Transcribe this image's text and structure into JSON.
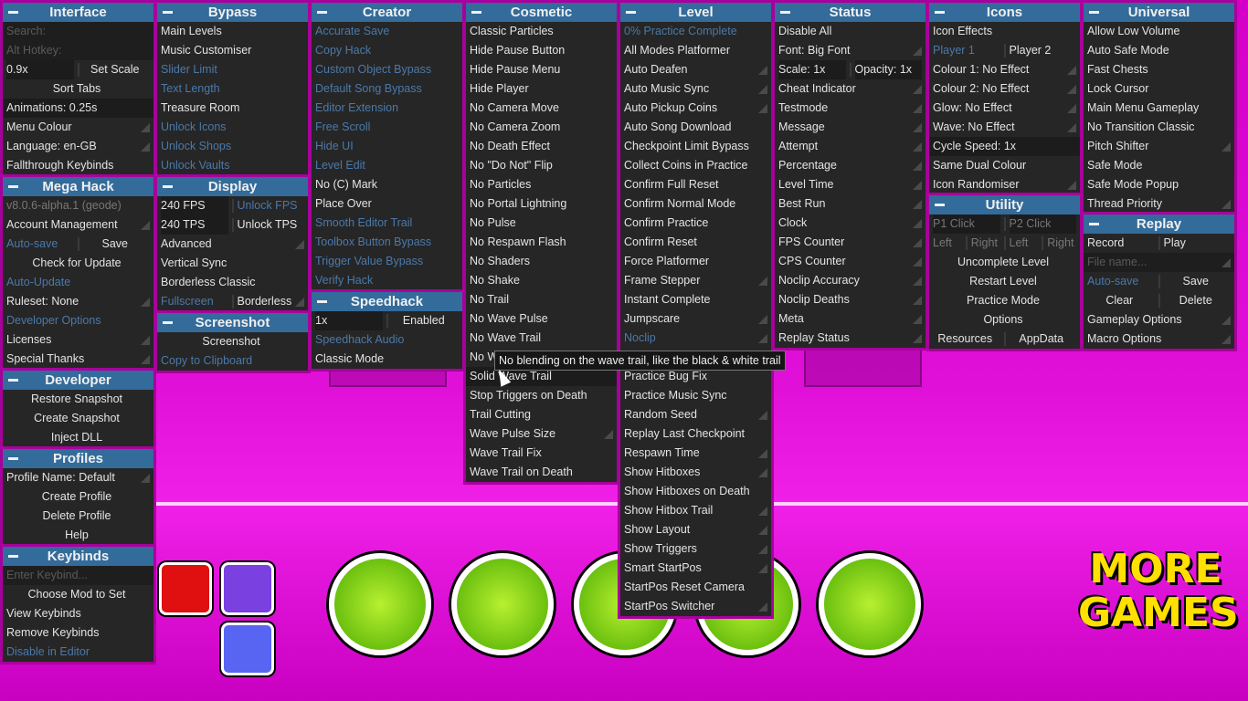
{
  "colors": {
    "header": "#336b9b",
    "panel": "#262626",
    "border": "#a8009c",
    "disabled_text": "#4a79aa",
    "background": "#e010d8"
  },
  "tooltip": "No blending on the wave trail, like the black & white trail",
  "background_art": {
    "more_games": "MORE GAMES",
    "icons": [
      "trophy-icon",
      "gear-icon",
      "stats-icon",
      "music-icon",
      "pentagon-icon",
      "youtube-icon",
      "twitch-icon",
      "discord-icon"
    ]
  },
  "panels": [
    {
      "id": "interface",
      "title": "Interface",
      "items": [
        {
          "in": "Search:"
        },
        {
          "in": "Alt Hotkey:"
        },
        {
          "pair": [
            {
              "t": "0.9x",
              "sel": true
            },
            {
              "t": "Set Scale",
              "c": true
            }
          ]
        },
        {
          "t": "Sort Tabs",
          "c": true
        },
        {
          "t": "Animations: 0.25s",
          "sel": true
        },
        {
          "t": "Menu Colour",
          "a": true
        },
        {
          "t": "Language: en-GB",
          "a": true
        },
        {
          "t": "Fallthrough Keybinds"
        }
      ]
    },
    {
      "id": "mega-hack",
      "title": "Mega Hack",
      "items": [
        {
          "t": "v8.0.6-alpha.1 (geode)",
          "g": true
        },
        {
          "t": "Account Management",
          "a": true
        },
        {
          "pair": [
            {
              "t": "Auto-save",
              "d": true
            },
            {
              "t": "Save",
              "c": true
            }
          ]
        },
        {
          "t": "Check for Update",
          "c": true
        },
        {
          "t": "Auto-Update",
          "d": true
        },
        {
          "t": "Ruleset: None",
          "a": true
        },
        {
          "t": "Developer Options",
          "d": true
        },
        {
          "t": "Licenses",
          "a": true
        },
        {
          "t": "Special Thanks",
          "a": true
        }
      ]
    },
    {
      "id": "developer",
      "title": "Developer",
      "items": [
        {
          "t": "Restore Snapshot",
          "c": true
        },
        {
          "t": "Create Snapshot",
          "c": true
        },
        {
          "t": "Inject DLL",
          "c": true
        }
      ]
    },
    {
      "id": "profiles",
      "title": "Profiles",
      "items": [
        {
          "t": "Profile Name: Default",
          "a": true
        },
        {
          "t": "Create Profile",
          "c": true
        },
        {
          "t": "Delete Profile",
          "c": true
        },
        {
          "t": "Help",
          "c": true
        }
      ]
    },
    {
      "id": "keybinds",
      "title": "Keybinds",
      "items": [
        {
          "in": "Enter Keybind..."
        },
        {
          "t": "Choose Mod to Set",
          "c": true
        },
        {
          "t": "View Keybinds"
        },
        {
          "t": "Remove Keybinds"
        },
        {
          "t": "Disable in Editor",
          "d": true
        }
      ]
    },
    {
      "id": "bypass",
      "title": "Bypass",
      "items": [
        {
          "t": "Main Levels"
        },
        {
          "t": "Music Customiser"
        },
        {
          "t": "Slider Limit",
          "d": true
        },
        {
          "t": "Text Length",
          "d": true
        },
        {
          "t": "Treasure Room"
        },
        {
          "t": "Unlock Icons",
          "d": true
        },
        {
          "t": "Unlock Shops",
          "d": true
        },
        {
          "t": "Unlock Vaults",
          "d": true
        }
      ]
    },
    {
      "id": "display",
      "title": "Display",
      "items": [
        {
          "pair": [
            {
              "t": "240 FPS",
              "sel": true
            },
            {
              "t": "Unlock FPS",
              "d": true
            }
          ]
        },
        {
          "pair": [
            {
              "t": "240 TPS",
              "sel": true
            },
            {
              "t": "Unlock TPS"
            }
          ]
        },
        {
          "t": "Advanced",
          "a": true
        },
        {
          "t": "Vertical Sync"
        },
        {
          "t": "Borderless Classic"
        },
        {
          "pair": [
            {
              "t": "Fullscreen",
              "d": true
            },
            {
              "t": "Borderless"
            }
          ],
          "a": true
        }
      ]
    },
    {
      "id": "screenshot",
      "title": "Screenshot",
      "items": [
        {
          "t": "Screenshot",
          "c": true
        },
        {
          "t": "Copy to Clipboard",
          "d": true
        }
      ]
    },
    {
      "id": "creator",
      "title": "Creator",
      "items": [
        {
          "t": "Accurate Save",
          "d": true
        },
        {
          "t": "Copy Hack",
          "d": true
        },
        {
          "t": "Custom Object Bypass",
          "d": true
        },
        {
          "t": "Default Song Bypass",
          "d": true
        },
        {
          "t": "Editor Extension",
          "d": true
        },
        {
          "t": "Free Scroll",
          "d": true
        },
        {
          "t": "Hide UI",
          "d": true
        },
        {
          "t": "Level Edit",
          "d": true
        },
        {
          "t": "No (C) Mark"
        },
        {
          "t": "Place Over"
        },
        {
          "t": "Smooth Editor Trail",
          "d": true
        },
        {
          "t": "Toolbox Button Bypass",
          "d": true
        },
        {
          "t": "Trigger Value Bypass",
          "d": true
        },
        {
          "t": "Verify Hack",
          "d": true
        }
      ]
    },
    {
      "id": "speedhack",
      "title": "Speedhack",
      "items": [
        {
          "pair": [
            {
              "t": "1x",
              "sel": true
            },
            {
              "t": "Enabled",
              "c": true
            }
          ]
        },
        {
          "t": "Speedhack Audio",
          "d": true
        },
        {
          "t": "Classic Mode"
        }
      ]
    },
    {
      "id": "cosmetic",
      "title": "Cosmetic",
      "items": [
        {
          "t": "Classic Particles"
        },
        {
          "t": "Hide Pause Button"
        },
        {
          "t": "Hide Pause Menu"
        },
        {
          "t": "Hide Player"
        },
        {
          "t": "No Camera Move"
        },
        {
          "t": "No Camera Zoom"
        },
        {
          "t": "No Death Effect"
        },
        {
          "t": "No \"Do Not\" Flip"
        },
        {
          "t": "No Particles"
        },
        {
          "t": "No Portal Lightning"
        },
        {
          "t": "No Pulse"
        },
        {
          "t": "No Respawn Flash"
        },
        {
          "t": "No Shaders"
        },
        {
          "t": "No Shake"
        },
        {
          "t": "No Trail"
        },
        {
          "t": "No Wave Pulse"
        },
        {
          "t": "No Wave Trail"
        },
        {
          "t": "No W"
        },
        {
          "t": "Solid Wave Trail",
          "sel": true
        },
        {
          "t": "Stop Triggers on Death"
        },
        {
          "t": "Trail Cutting"
        },
        {
          "t": "Wave Pulse Size",
          "a": true
        },
        {
          "t": "Wave Trail Fix"
        },
        {
          "t": "Wave Trail on Death"
        }
      ]
    },
    {
      "id": "level",
      "title": "Level",
      "items": [
        {
          "t": "0% Practice Complete",
          "d": true
        },
        {
          "t": "All Modes Platformer"
        },
        {
          "t": "Auto Deafen",
          "a": true
        },
        {
          "t": "Auto Music Sync",
          "a": true
        },
        {
          "t": "Auto Pickup Coins",
          "a": true
        },
        {
          "t": "Auto Song Download"
        },
        {
          "t": "Checkpoint Limit Bypass"
        },
        {
          "t": "Collect Coins in Practice"
        },
        {
          "t": "Confirm Full Reset"
        },
        {
          "t": "Confirm Normal Mode"
        },
        {
          "t": "Confirm Practice"
        },
        {
          "t": "Confirm Reset"
        },
        {
          "t": "Force Platformer"
        },
        {
          "t": "Frame Stepper",
          "a": true
        },
        {
          "t": "Instant Complete"
        },
        {
          "t": "Jumpscare",
          "a": true
        },
        {
          "t": "Noclip",
          "d": true,
          "a": true
        },
        {
          "t": ""
        },
        {
          "t": "Practice Bug Fix"
        },
        {
          "t": "Practice Music Sync"
        },
        {
          "t": "Random Seed",
          "a": true
        },
        {
          "t": "Replay Last Checkpoint"
        },
        {
          "t": "Respawn Time",
          "a": true
        },
        {
          "t": "Show Hitboxes",
          "a": true
        },
        {
          "t": "Show Hitboxes on Death"
        },
        {
          "t": "Show Hitbox Trail",
          "a": true
        },
        {
          "t": "Show Layout",
          "a": true
        },
        {
          "t": "Show Triggers",
          "a": true
        },
        {
          "t": "Smart StartPos",
          "a": true
        },
        {
          "t": "StartPos Reset Camera"
        },
        {
          "t": "StartPos Switcher",
          "a": true
        }
      ]
    },
    {
      "id": "status",
      "title": "Status",
      "items": [
        {
          "t": "Disable All"
        },
        {
          "t": "Font: Big Font",
          "a": true
        },
        {
          "pair": [
            {
              "t": "Scale: 1x",
              "sel": true
            },
            {
              "t": "Opacity: 1x",
              "sel": true
            }
          ]
        },
        {
          "t": "Cheat Indicator",
          "a": true
        },
        {
          "t": "Testmode",
          "a": true
        },
        {
          "t": "Message",
          "a": true
        },
        {
          "t": "Attempt",
          "a": true
        },
        {
          "t": "Percentage",
          "a": true
        },
        {
          "t": "Level Time",
          "a": true
        },
        {
          "t": "Best Run",
          "a": true
        },
        {
          "t": "Clock",
          "a": true
        },
        {
          "t": "FPS Counter",
          "a": true
        },
        {
          "t": "CPS Counter",
          "a": true
        },
        {
          "t": "Noclip Accuracy",
          "a": true
        },
        {
          "t": "Noclip Deaths",
          "a": true
        },
        {
          "t": "Meta",
          "a": true
        },
        {
          "t": "Replay Status",
          "a": true
        }
      ]
    },
    {
      "id": "icons",
      "title": "Icons",
      "items": [
        {
          "t": "Icon Effects"
        },
        {
          "pair": [
            {
              "t": "Player 1",
              "d": true
            },
            {
              "t": "Player 2"
            }
          ]
        },
        {
          "t": "Colour 1: No Effect",
          "a": true
        },
        {
          "t": "Colour 2: No Effect",
          "a": true
        },
        {
          "t": "Glow: No Effect",
          "a": true
        },
        {
          "t": "Wave: No Effect",
          "a": true
        },
        {
          "t": "Cycle Speed: 1x",
          "sel": true
        },
        {
          "t": "Same Dual Colour"
        },
        {
          "t": "Icon Randomiser",
          "a": true
        }
      ]
    },
    {
      "id": "utility",
      "title": "Utility",
      "items": [
        {
          "pair": [
            {
              "t": "P1 Click",
              "g": true,
              "sel": true
            },
            {
              "t": "P2 Click",
              "g": true,
              "sel": true
            }
          ]
        },
        {
          "pair": [
            {
              "t": "Left",
              "g": true
            },
            {
              "t": "Right",
              "g": true
            },
            {
              "t": "Left",
              "g": true
            },
            {
              "t": "Right",
              "g": true
            }
          ]
        },
        {
          "t": "Uncomplete Level",
          "c": true
        },
        {
          "t": "Restart Level",
          "c": true
        },
        {
          "t": "Practice Mode",
          "c": true
        },
        {
          "t": "Options",
          "c": true
        },
        {
          "pair": [
            {
              "t": "Resources",
              "c": true
            },
            {
              "t": "AppData",
              "c": true
            }
          ]
        }
      ]
    },
    {
      "id": "universal",
      "title": "Universal",
      "items": [
        {
          "t": "Allow Low Volume"
        },
        {
          "t": "Auto Safe Mode"
        },
        {
          "t": "Fast Chests"
        },
        {
          "t": "Lock Cursor"
        },
        {
          "t": "Main Menu Gameplay"
        },
        {
          "t": "No Transition Classic"
        },
        {
          "t": "Pitch Shifter",
          "a": true
        },
        {
          "t": "Safe Mode"
        },
        {
          "t": "Safe Mode Popup"
        },
        {
          "t": "Thread Priority",
          "a": true
        }
      ]
    },
    {
      "id": "replay",
      "title": "Replay",
      "items": [
        {
          "pair": [
            {
              "t": "Record"
            },
            {
              "t": "Play"
            }
          ]
        },
        {
          "in": "File name...",
          "a": true
        },
        {
          "pair": [
            {
              "t": "Auto-save",
              "d": true
            },
            {
              "t": "Save",
              "c": true
            }
          ]
        },
        {
          "pair": [
            {
              "t": "Clear",
              "c": true
            },
            {
              "t": "Delete",
              "c": true
            }
          ]
        },
        {
          "t": "Gameplay Options",
          "a": true
        },
        {
          "t": "Macro Options",
          "a": true
        }
      ]
    }
  ]
}
